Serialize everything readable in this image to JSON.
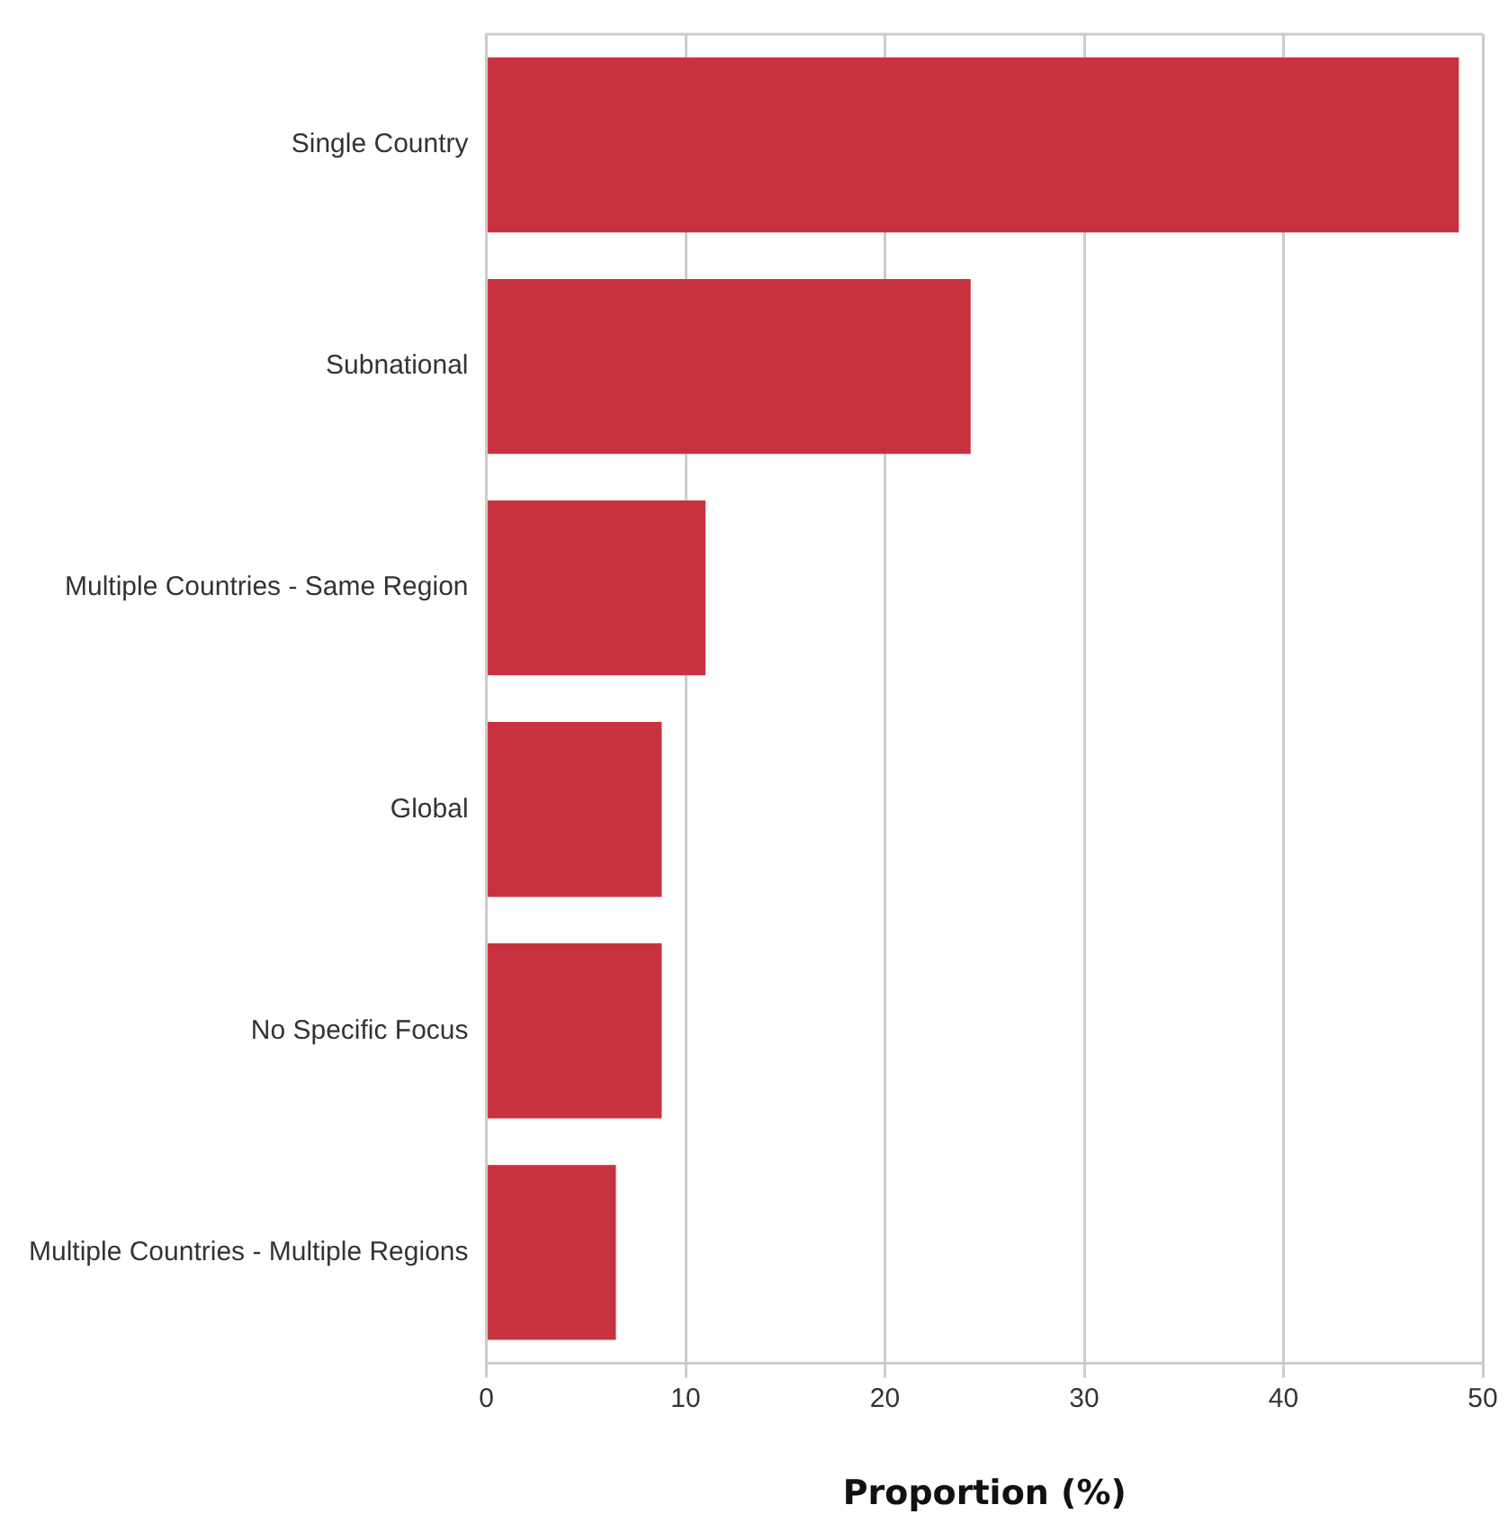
{
  "chart_data": {
    "type": "bar",
    "orientation": "horizontal",
    "xlabel": "Proportion (%)",
    "categories": [
      "Single Country",
      "Subnational",
      "Multiple Countries - Same Region",
      "Global",
      "No Specific Focus",
      "Multiple Countries - Multiple Regions"
    ],
    "values": [
      48.8,
      24.3,
      11.0,
      8.8,
      8.8,
      6.5
    ],
    "color": "#c8323f",
    "xlim": [
      0,
      50
    ],
    "xticks": [
      0,
      10,
      20,
      30,
      40,
      50
    ],
    "grid": "x"
  }
}
